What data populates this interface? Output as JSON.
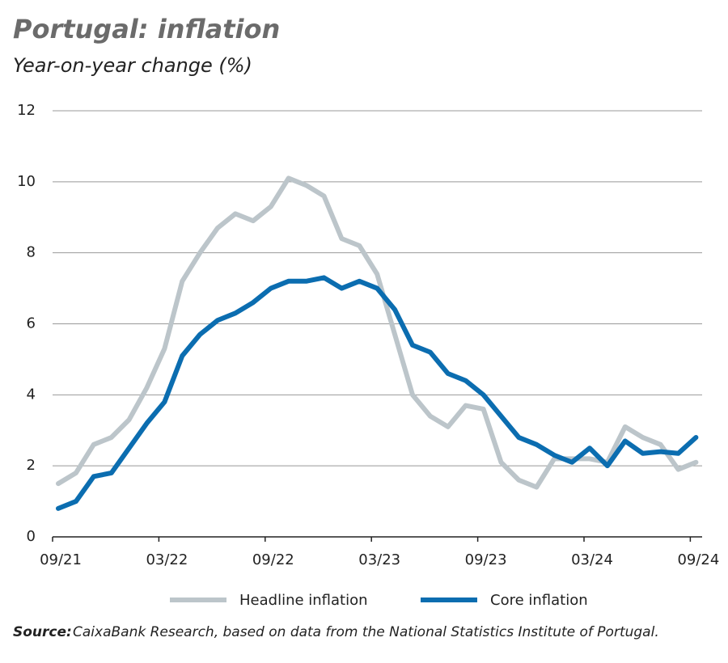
{
  "chart_data": {
    "type": "line",
    "title": "Portugal: inflation",
    "subtitle": "Year-on-year change (%)",
    "categories": [
      "09/21",
      null,
      null,
      null,
      null,
      null,
      "03/22",
      null,
      null,
      null,
      null,
      null,
      "09/22",
      null,
      null,
      null,
      null,
      null,
      "03/23",
      null,
      null,
      null,
      null,
      null,
      "09/23",
      null,
      null,
      null,
      null,
      null,
      "03/24",
      null,
      null,
      null,
      null,
      null,
      "09/24"
    ],
    "series": [
      {
        "name": "Headline inflation",
        "color": "#bcc5ca",
        "values": [
          1.5,
          1.8,
          2.6,
          2.8,
          3.3,
          4.2,
          5.3,
          7.2,
          8.0,
          8.7,
          9.1,
          8.9,
          9.3,
          10.1,
          9.9,
          9.6,
          8.4,
          8.2,
          7.4,
          5.7,
          4.0,
          3.4,
          3.1,
          3.7,
          3.6,
          2.1,
          1.6,
          1.4,
          2.2,
          2.2,
          2.2,
          2.1,
          3.1,
          2.8,
          2.6,
          1.9,
          2.1
        ]
      },
      {
        "name": "Core inflation",
        "color": "#0b6db0",
        "values": [
          0.8,
          1.0,
          1.7,
          1.8,
          2.5,
          3.2,
          3.8,
          5.1,
          5.7,
          6.1,
          6.3,
          6.6,
          7.0,
          7.2,
          7.2,
          7.3,
          7.0,
          7.2,
          7.0,
          6.4,
          5.4,
          5.2,
          4.6,
          4.4,
          4.0,
          3.4,
          2.8,
          2.6,
          2.3,
          2.1,
          2.5,
          2.0,
          2.7,
          2.35,
          2.4,
          2.35,
          2.8
        ]
      }
    ],
    "ylim": [
      0,
      12
    ],
    "yticks": [
      0,
      2,
      4,
      6,
      8,
      10,
      12
    ],
    "grid": true,
    "legend": "bottom",
    "source_label": "Source:",
    "source_text": "CaixaBank Research, based on data from the National Statistics Institute of Portugal."
  }
}
